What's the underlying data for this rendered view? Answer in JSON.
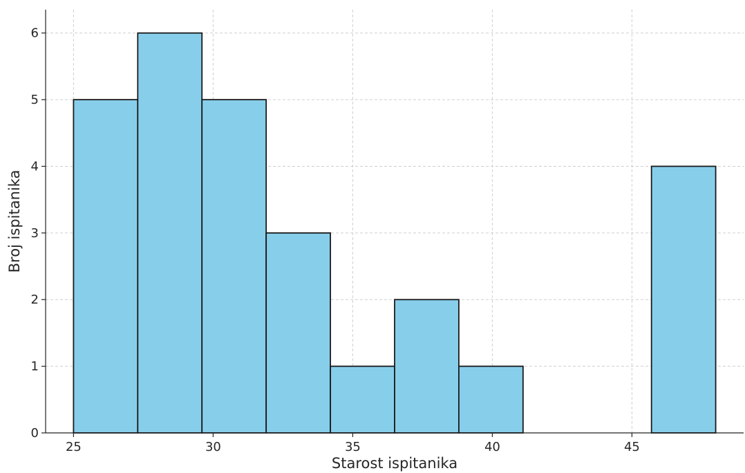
{
  "chart_data": {
    "type": "bar",
    "subtype": "histogram",
    "xlabel": "Starost ispitanika",
    "ylabel": "Broj ispitanika",
    "bin_edges": [
      25,
      27.3,
      29.6,
      31.9,
      34.2,
      36.5,
      38.8,
      41.1,
      43.4,
      45.7,
      48
    ],
    "counts": [
      5,
      6,
      5,
      3,
      1,
      2,
      1,
      0,
      0,
      4
    ],
    "xlim": [
      24,
      49
    ],
    "ylim": [
      0,
      6.35
    ],
    "xticks": [
      25,
      30,
      35,
      40,
      45
    ],
    "yticks": [
      0,
      1,
      2,
      3,
      4,
      5,
      6
    ],
    "grid": true,
    "bar_color": "#87ceeb",
    "edge_color": "#1a1a1a"
  }
}
